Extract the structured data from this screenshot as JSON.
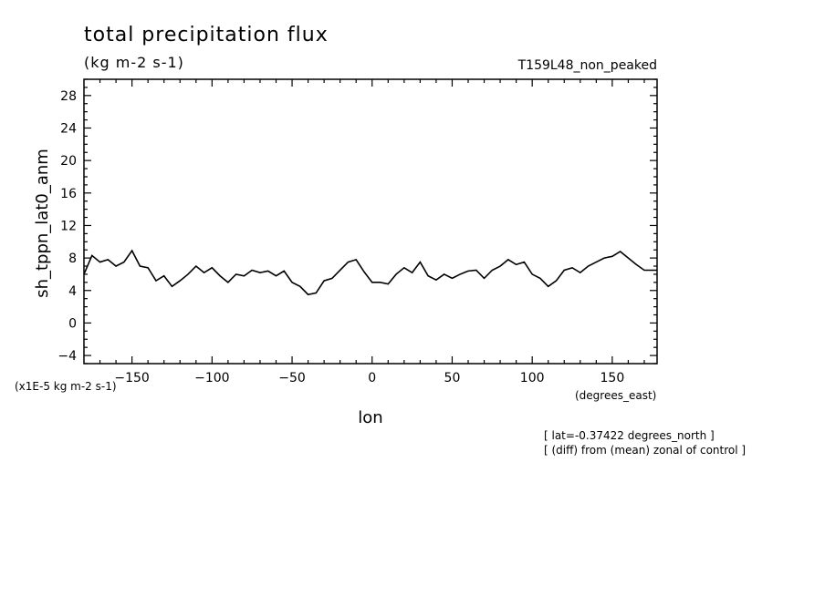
{
  "header": {
    "title": "total precipitation flux",
    "units": "(kg m-2 s-1)",
    "experiment": "T159L48_non_peaked"
  },
  "notes": {
    "y_scale": "(x1E-5 kg m-2 s-1)",
    "x_units": "(degrees_east)",
    "lat": "[ lat=-0.37422 degrees_north ]",
    "diff": "[ (diff) from (mean) zonal of control ]"
  },
  "chart_data": {
    "type": "line",
    "title": "total precipitation flux",
    "xlabel": "lon",
    "ylabel": "sh_tppn_lat0_anm",
    "xlim": [
      -180,
      178
    ],
    "ylim": [
      -5,
      30
    ],
    "xticks": [
      -150,
      -100,
      -50,
      0,
      50,
      100,
      150
    ],
    "yticks": [
      -4,
      0,
      4,
      8,
      12,
      16,
      20,
      24,
      28
    ],
    "line_color": "#000000",
    "series": [
      {
        "x": [
          -180,
          -175,
          -170,
          -165,
          -160,
          -155,
          -150,
          -145,
          -140,
          -135,
          -130,
          -125,
          -120,
          -115,
          -110,
          -105,
          -100,
          -95,
          -90,
          -85,
          -80,
          -75,
          -70,
          -65,
          -60,
          -55,
          -50,
          -45,
          -40,
          -35,
          -30,
          -25,
          -20,
          -15,
          -10,
          -5,
          0,
          5,
          10,
          15,
          20,
          25,
          30,
          35,
          40,
          45,
          50,
          55,
          60,
          65,
          70,
          75,
          80,
          85,
          90,
          95,
          100,
          105,
          110,
          115,
          120,
          125,
          130,
          135,
          140,
          145,
          150,
          155,
          160,
          165,
          170,
          175,
          178
        ],
        "y": [
          6.0,
          8.3,
          7.5,
          7.8,
          7.0,
          7.5,
          8.9,
          7.0,
          6.8,
          5.2,
          5.8,
          4.5,
          5.2,
          6.0,
          7.0,
          6.2,
          6.8,
          5.8,
          5.0,
          6.0,
          5.8,
          6.5,
          6.2,
          6.4,
          5.8,
          6.4,
          5.0,
          4.5,
          3.5,
          3.7,
          5.2,
          5.5,
          6.5,
          7.5,
          7.8,
          6.3,
          5.0,
          5.0,
          4.8,
          6.0,
          6.8,
          6.2,
          7.5,
          5.8,
          5.3,
          6.0,
          5.5,
          6.0,
          6.4,
          6.5,
          5.5,
          6.5,
          7.0,
          7.8,
          7.2,
          7.5,
          6.0,
          5.5,
          4.5,
          5.2,
          6.5,
          6.8,
          6.2,
          7.0,
          7.5,
          8.0,
          8.2,
          8.8,
          8.0,
          7.2,
          6.5,
          6.5,
          6.5
        ]
      }
    ]
  }
}
